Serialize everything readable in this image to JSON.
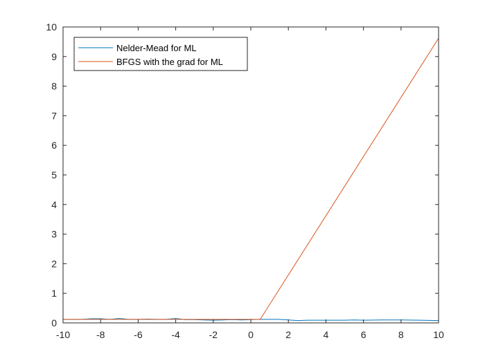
{
  "chart_data": {
    "type": "line",
    "title": "",
    "xlabel": "",
    "ylabel": "",
    "xlim": [
      -10,
      10
    ],
    "ylim": [
      0,
      10
    ],
    "x_ticks": [
      -10,
      -8,
      -6,
      -4,
      -2,
      0,
      2,
      4,
      6,
      8,
      10
    ],
    "y_ticks": [
      0,
      1,
      2,
      3,
      4,
      5,
      6,
      7,
      8,
      9,
      10
    ],
    "grid": false,
    "box": true,
    "legend_position": "top-left",
    "series": [
      {
        "name": "Nelder-Mead for ML",
        "color": "#0072BD",
        "x": [
          -10,
          -9,
          -8.5,
          -8,
          -7.5,
          -7,
          -6.5,
          -6,
          -5.5,
          -5,
          -4.5,
          -4,
          -3.5,
          -3,
          -2.5,
          -2,
          -1.5,
          -1,
          -0.5,
          0,
          0.5,
          1,
          1.5,
          2,
          2.5,
          3,
          4,
          5,
          5.5,
          6,
          7,
          8,
          9,
          10
        ],
        "y": [
          0.12,
          0.12,
          0.14,
          0.14,
          0.12,
          0.15,
          0.12,
          0.12,
          0.13,
          0.12,
          0.12,
          0.15,
          0.11,
          0.11,
          0.1,
          0.09,
          0.1,
          0.11,
          0.1,
          0.11,
          0.12,
          0.12,
          0.12,
          0.1,
          0.08,
          0.09,
          0.09,
          0.09,
          0.1,
          0.09,
          0.1,
          0.1,
          0.09,
          0.08
        ]
      },
      {
        "name": "BFGS with the grad for ML",
        "color": "#D95319",
        "x": [
          -10,
          -8,
          -6,
          -4,
          -2,
          0,
          0.5,
          10
        ],
        "y": [
          0.12,
          0.12,
          0.12,
          0.12,
          0.12,
          0.12,
          0.12,
          9.62
        ]
      }
    ]
  }
}
